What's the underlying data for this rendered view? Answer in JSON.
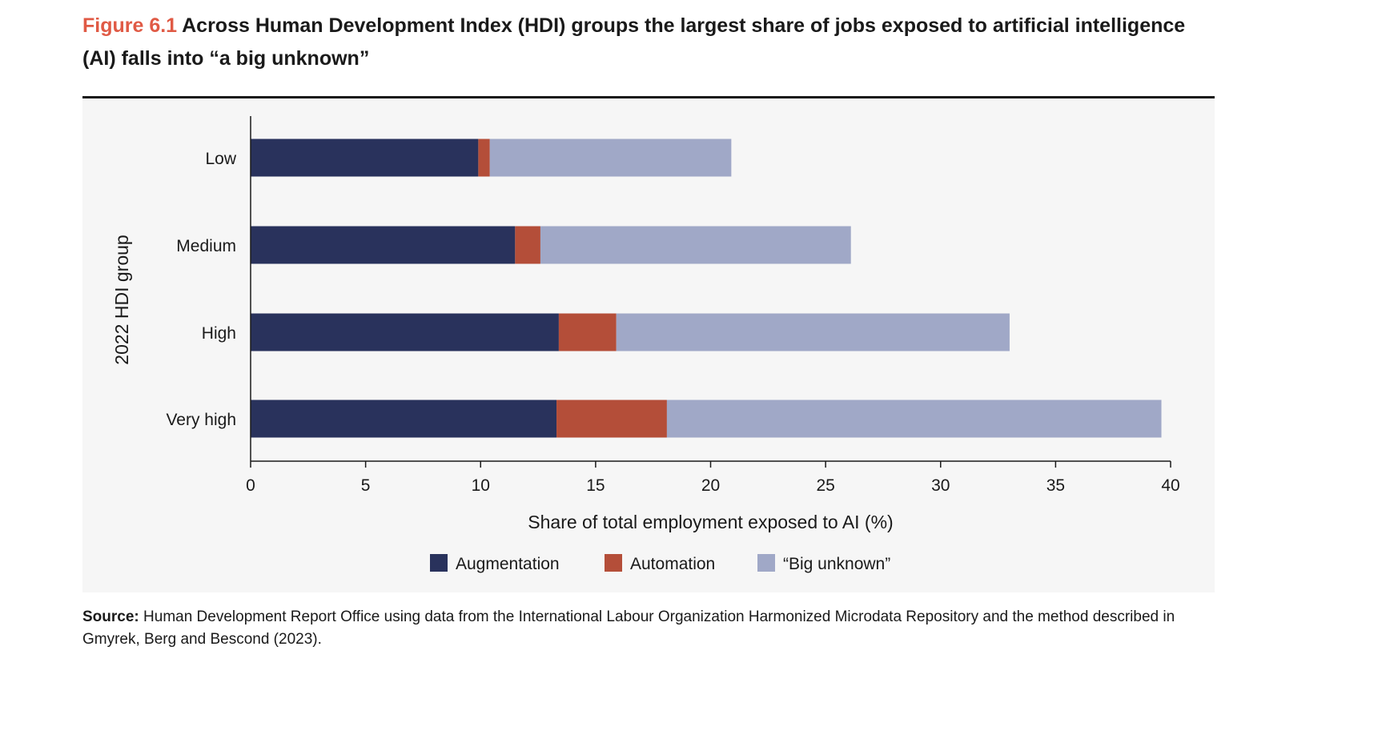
{
  "figure": {
    "label": "Figure 6.1",
    "title": "Across Human Development Index (HDI) groups the largest share of jobs exposed to artificial intelligence (AI) falls into “a big unknown”"
  },
  "source": {
    "label": "Source:",
    "text": "Human Development Report Office using data from the International Labour Organization Harmonized Microdata Repository and the method described in Gmyrek, Berg and Bescond (2023)."
  },
  "chart_data": {
    "type": "bar",
    "orientation": "horizontal",
    "stacked": true,
    "categories": [
      "Low",
      "Medium",
      "High",
      "Very high"
    ],
    "series": [
      {
        "name": "Augmentation",
        "color": "#29325c",
        "values": [
          9.9,
          11.5,
          13.4,
          13.3
        ]
      },
      {
        "name": "Automation",
        "color": "#b44e39",
        "values": [
          0.5,
          1.1,
          2.5,
          4.8
        ]
      },
      {
        "name": "“Big unknown”",
        "color": "#a0a8c7",
        "values": [
          10.5,
          13.5,
          17.1,
          21.5
        ]
      }
    ],
    "xlabel": "Share of total employment exposed to AI (%)",
    "ylabel": "2022 HDI group",
    "xlim": [
      0,
      40
    ],
    "xticks": [
      "0",
      "5",
      "10",
      "15",
      "20",
      "25",
      "30",
      "35",
      "40"
    ],
    "grid": false,
    "legend_position": "bottom-center"
  }
}
